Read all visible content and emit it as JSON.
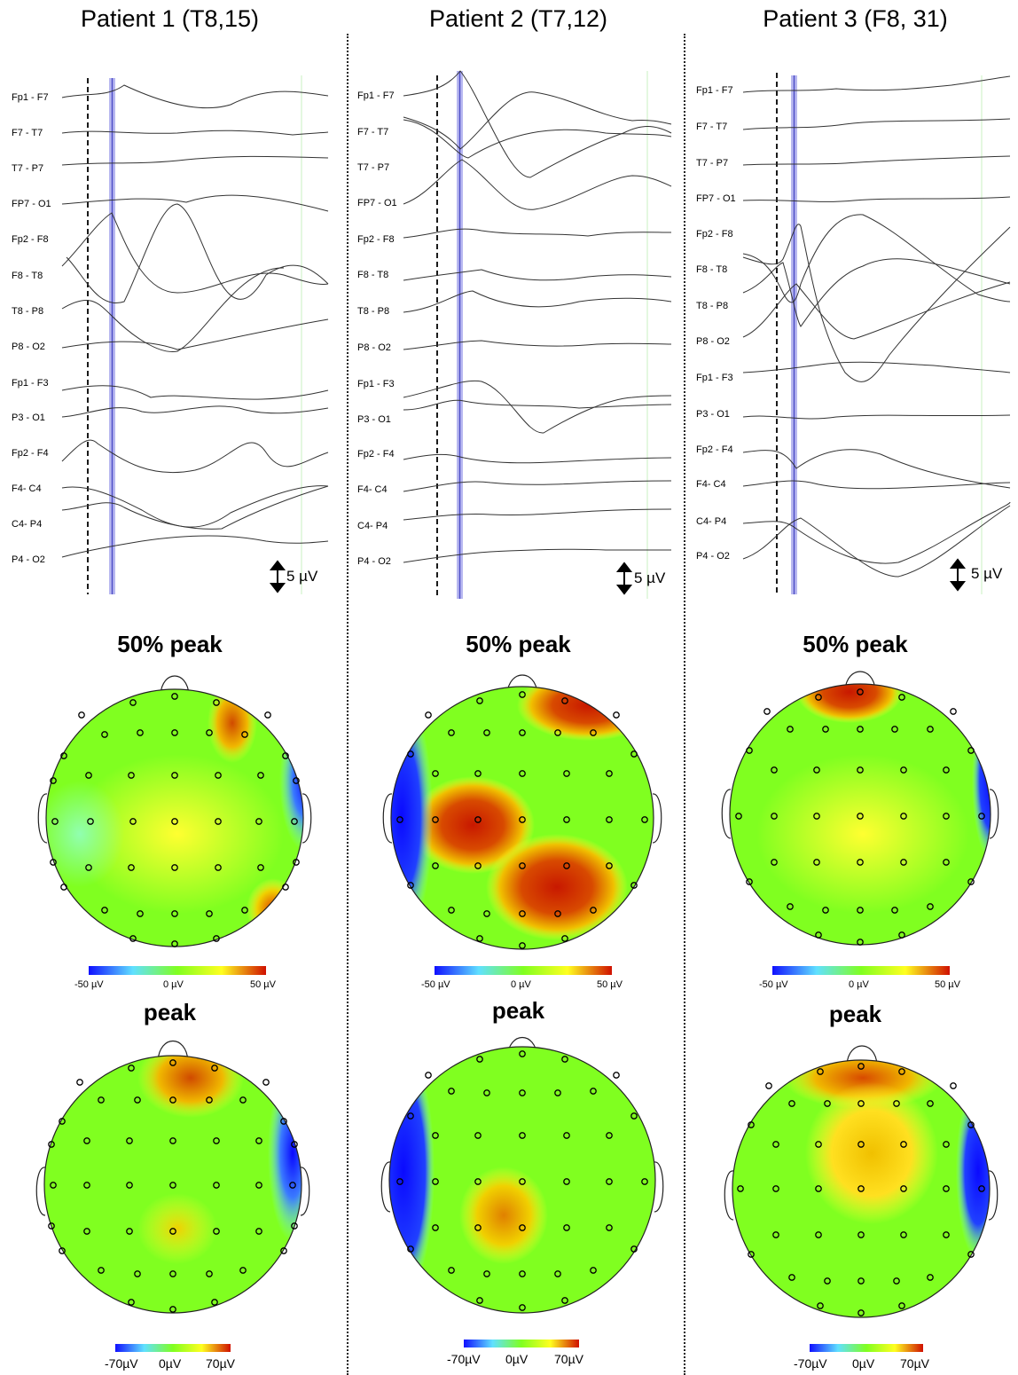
{
  "patients": [
    {
      "title": "Patient 1 (T8,15)",
      "channels": [
        "Fp1 - F7",
        "F7 - T7",
        "T7 - P7",
        "FP7 - O1",
        "Fp2 - F8",
        "F8 - T8",
        "T8 - P8",
        "P8 - O2",
        "Fp1 - F3",
        "P3 - O1",
        "Fp2 - F4",
        "F4- C4",
        "C4- P4",
        "P4 - O2"
      ],
      "scale_label": "5 µV",
      "map1": {
        "title": "50% peak",
        "cb": [
          "-50 µV",
          "0 µV",
          "50 µV"
        ]
      },
      "map2": {
        "title": "peak",
        "cb": [
          "-70µV",
          "0µV",
          "70µV"
        ]
      }
    },
    {
      "title": "Patient 2 (T7,12)",
      "channels": [
        "Fp1 - F7",
        "F7 - T7",
        "T7 - P7",
        "FP7 - O1",
        "Fp2 - F8",
        "F8 - T8",
        "T8 - P8",
        "P8 - O2",
        "Fp1 - F3",
        "P3 - O1",
        "Fp2 - F4",
        "F4- C4",
        "C4- P4",
        "P4 - O2"
      ],
      "scale_label": "5 µV",
      "map1": {
        "title": "50% peak",
        "cb": [
          "-50 µV",
          "0 µV",
          "50 µV"
        ]
      },
      "map2": {
        "title": "peak",
        "cb": [
          "-70µV",
          "0µV",
          "70µV"
        ]
      }
    },
    {
      "title": "Patient 3 (F8, 31)",
      "channels": [
        "Fp1 - F7",
        "F7 - T7",
        "T7 - P7",
        "FP7 - O1",
        "Fp2 - F8",
        "F8 - T8",
        "T8 - P8",
        "P8 - O2",
        "Fp1 - F3",
        "P3 - O1",
        "Fp2 - F4",
        "F4- C4",
        "C4- P4",
        "P4 - O2"
      ],
      "scale_label": "5 µV",
      "map1": {
        "title": "50% peak",
        "cb": [
          "-50 µV",
          "0 µV",
          "50 µV"
        ]
      },
      "map2": {
        "title": "peak",
        "cb": [
          "-70µV",
          "0µV",
          "70µV"
        ]
      }
    }
  ],
  "colors": {
    "negative": "#1a1aff",
    "neutral": "#7fff00",
    "positive": "#cc1a00",
    "marker": "#6a6adc"
  }
}
